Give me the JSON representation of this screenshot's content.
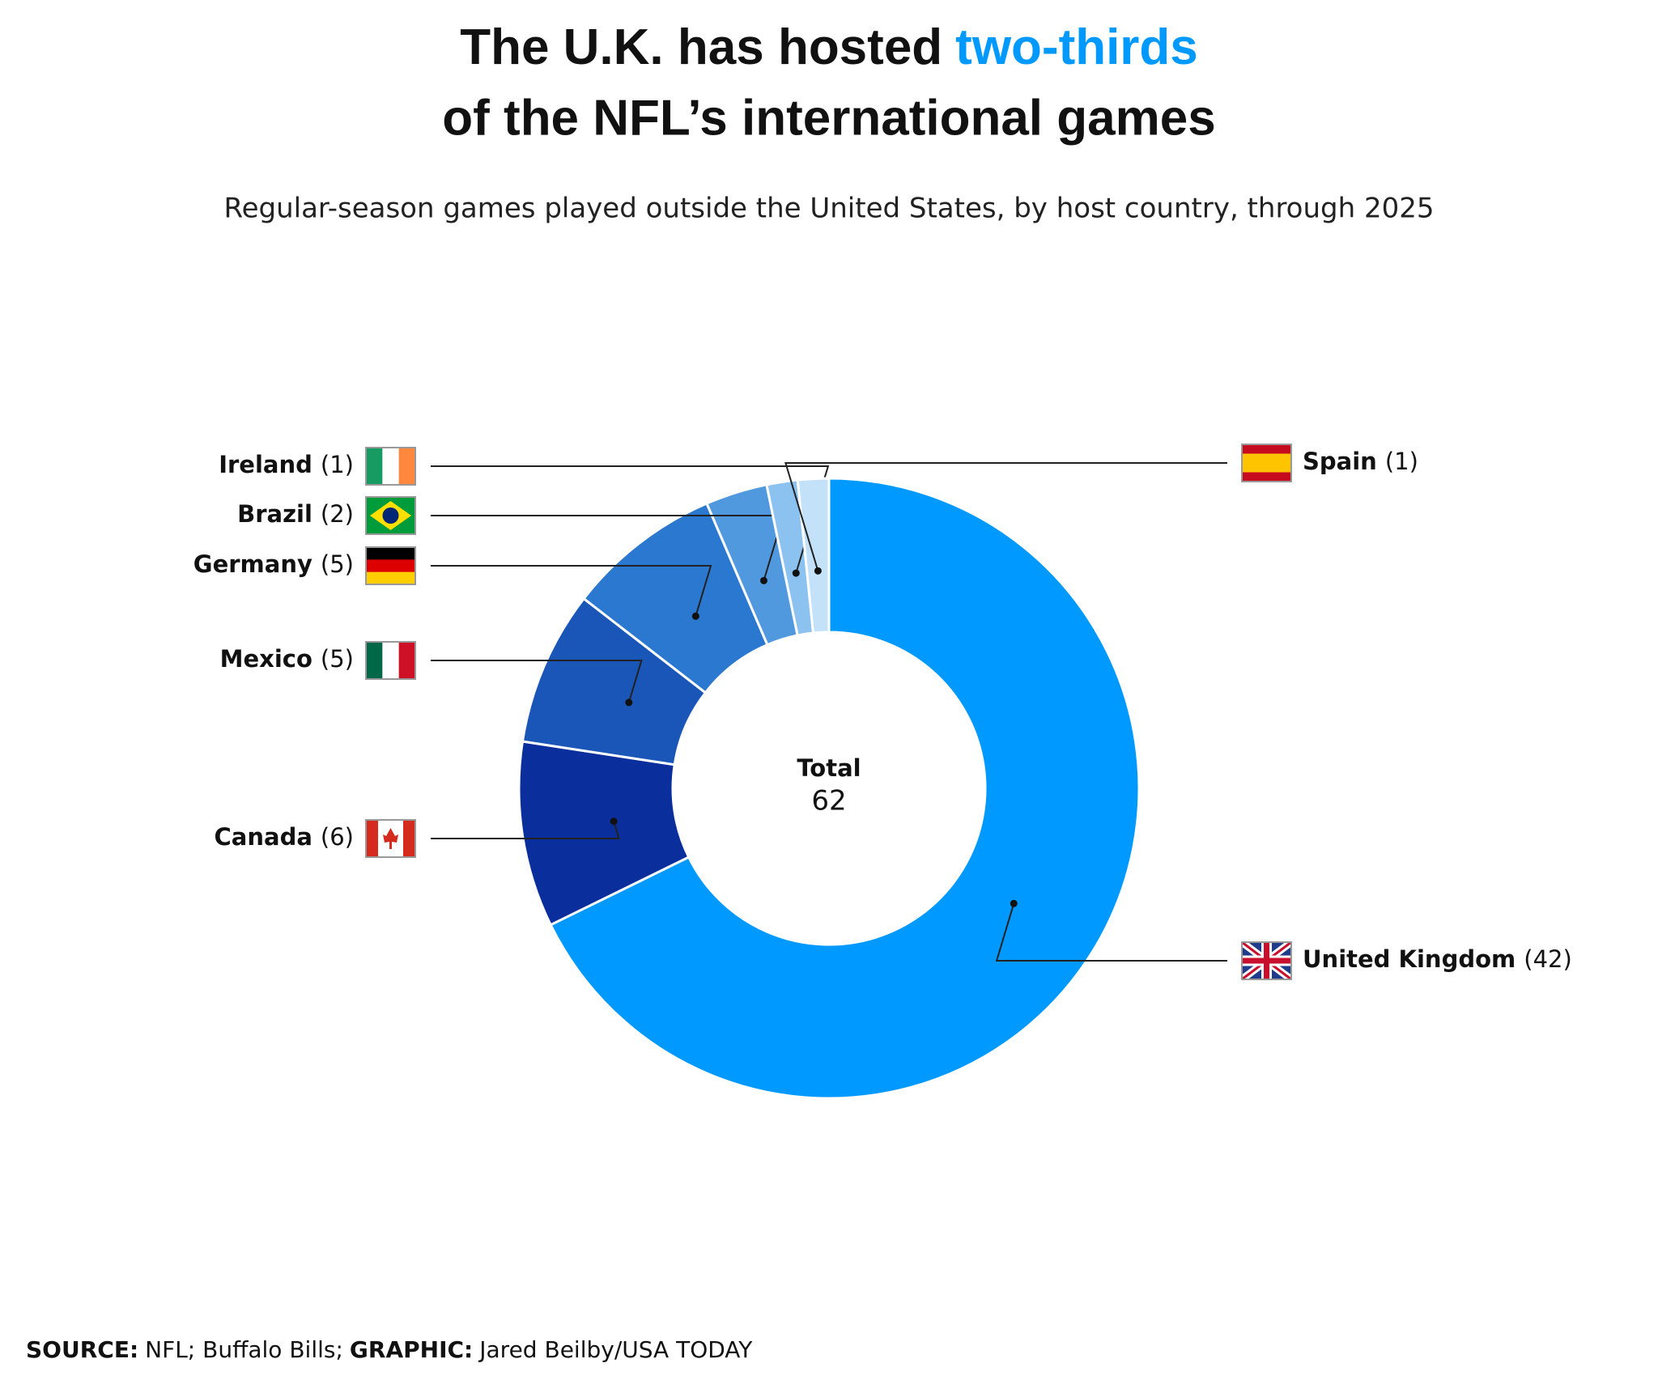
{
  "chart_data": {
    "type": "donut",
    "title": [
      "The U.K. has hosted",
      "two-thirds",
      "of the NFL’s international games"
    ],
    "subtitle": "Regular-season games played outside the United States, by host country, through 2025",
    "categories": [
      "United Kingdom",
      "Canada",
      "Mexico",
      "Germany",
      "Brazil",
      "Ireland",
      "Spain"
    ],
    "values": [
      42,
      6,
      5,
      5,
      2,
      1,
      1
    ],
    "value_labels": [
      "(42)",
      "(6)",
      "(5)",
      "(5)",
      "(2)",
      "(1)",
      "(1)"
    ],
    "colors": [
      "#0099ff",
      "#0a2f9c",
      "#1a56b8",
      "#2a78d0",
      "#5199de",
      "#8cc2ef",
      "#c3e2fa"
    ],
    "center_label": "Total",
    "total": 62,
    "source": [
      "SOURCE:",
      "NFL; Buffalo Bills;",
      "GRAPHIC:",
      "Jared Beilby/USA TODAY"
    ]
  }
}
